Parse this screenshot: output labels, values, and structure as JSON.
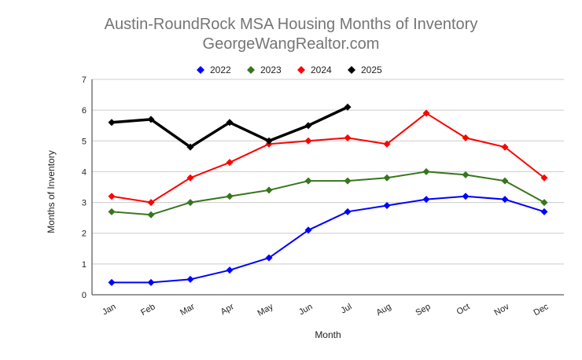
{
  "chart_data": {
    "type": "line",
    "title": "Austin-RoundRock MSA Housing Months of Inventory",
    "subtitle": "GeorgeWangRealtor.com",
    "xlabel": "Month",
    "ylabel": "Months of Inventory",
    "ylim": [
      0,
      7
    ],
    "yticks": [
      "0",
      "1",
      "2",
      "3",
      "4",
      "5",
      "6",
      "7"
    ],
    "grid": true,
    "legend_position": "top",
    "categories": [
      "Jan",
      "Feb",
      "Mar",
      "Apr",
      "May",
      "Jun",
      "Jul",
      "Aug",
      "Sep",
      "Oct",
      "Nov",
      "Dec"
    ],
    "series": [
      {
        "name": "2022",
        "color": "#0000ff",
        "values": [
          0.4,
          0.4,
          0.5,
          0.8,
          1.2,
          2.1,
          2.7,
          2.9,
          3.1,
          3.2,
          3.1,
          2.7
        ]
      },
      {
        "name": "2023",
        "color": "#38761d",
        "values": [
          2.7,
          2.6,
          3.0,
          3.2,
          3.4,
          3.7,
          3.7,
          3.8,
          4.0,
          3.9,
          3.7,
          3.0
        ]
      },
      {
        "name": "2024",
        "color": "#ff0000",
        "values": [
          3.2,
          3.0,
          3.8,
          4.3,
          4.9,
          5.0,
          5.1,
          4.9,
          5.9,
          5.1,
          4.8,
          3.8
        ]
      },
      {
        "name": "2025",
        "color": "#000000",
        "values": [
          5.6,
          5.7,
          4.8,
          5.6,
          5.0,
          5.5,
          6.1,
          null,
          null,
          null,
          null,
          null
        ]
      }
    ]
  }
}
